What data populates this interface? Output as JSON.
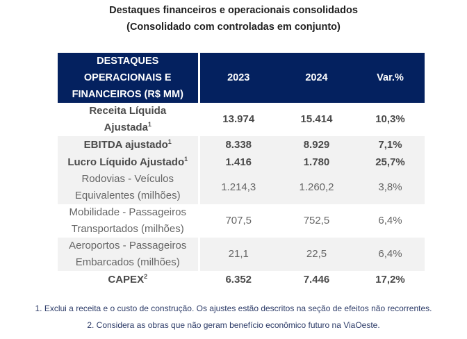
{
  "title": {
    "line1": "Destaques financeiros e operacionais consolidados",
    "line2": "(Consolidado com controladas em conjunto)"
  },
  "table": {
    "header": {
      "label_line1": "DESTAQUES",
      "label_line2": "OPERACIONAIS E",
      "label_line3": "FINANCEIROS (R$ MM)",
      "col_2023": "2023",
      "col_2024": "2024",
      "col_var": "Var.%"
    },
    "rows": [
      {
        "label_line1": "Receita Líquida",
        "label_line2": "Ajustada",
        "sup": "1",
        "v2023": "13.974",
        "v2024": "15.414",
        "var": "10,3%"
      },
      {
        "label_line1": "EBITDA ajustado",
        "sup": "1",
        "v2023": "8.338",
        "v2024": "8.929",
        "var": "7,1%"
      },
      {
        "label_line1": "Lucro Líquido Ajustado",
        "sup": "1",
        "v2023": "1.416",
        "v2024": "1.780",
        "var": "25,7%"
      },
      {
        "label_line1": "Rodovias - Veículos",
        "label_line2": "Equivalentes (milhões)",
        "v2023": "1.214,3",
        "v2024": "1.260,2",
        "var": "3,8%"
      },
      {
        "label_line1": "Mobilidade - Passageiros",
        "label_line2": "Transportados (milhões)",
        "v2023": "707,5",
        "v2024": "752,5",
        "var": "6,4%"
      },
      {
        "label_line1": "Aeroportos - Passageiros",
        "label_line2": "Embarcados (milhões)",
        "v2023": "21,1",
        "v2024": "22,5",
        "var": "6,4%"
      },
      {
        "label_line1": "CAPEX",
        "sup": "2",
        "v2023": "6.352",
        "v2024": "7.446",
        "var": "17,2%"
      }
    ]
  },
  "footnotes": {
    "note1": "1. Exclui a receita e o custo de construção. Os ajustes estão descritos na seção de efeitos não recorrentes.",
    "note2": "2. Considera as obras que não geram benefício econômico futuro na ViaOeste."
  },
  "colors": {
    "header_bg": "#04215f",
    "stripe_bg": "#f2f2f2",
    "footnote_text": "#2b3a67"
  }
}
